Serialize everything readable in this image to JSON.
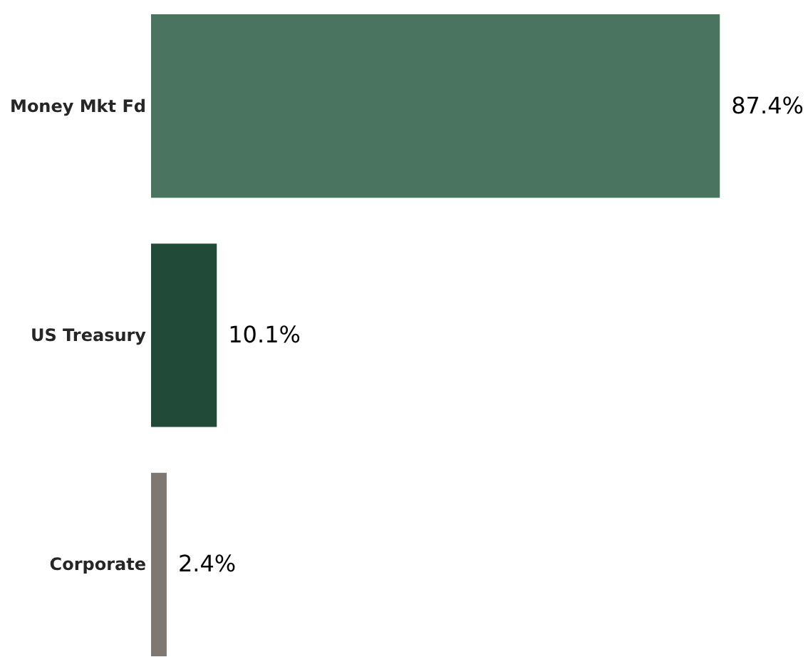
{
  "chart_data": {
    "type": "bar",
    "orientation": "horizontal",
    "categories": [
      "Money Mkt Fd",
      "US Treasury",
      "Corporate"
    ],
    "values": [
      87.4,
      10.1,
      2.4
    ],
    "colors": [
      "#4a7360",
      "#224a38",
      "#7f7872"
    ],
    "value_labels": [
      "87.4%",
      "10.1%",
      "2.4%"
    ]
  }
}
